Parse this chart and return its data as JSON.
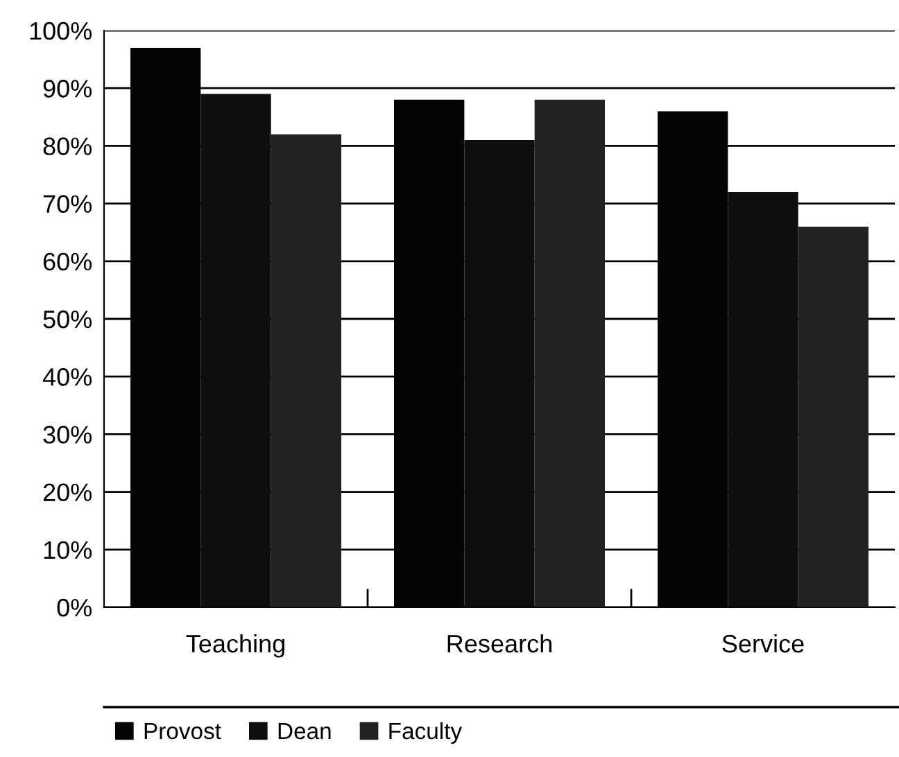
{
  "chart_data": {
    "type": "bar",
    "categories": [
      "Teaching",
      "Research",
      "Service"
    ],
    "series": [
      {
        "name": "Provost",
        "color": "#050505",
        "values": [
          97,
          88,
          86
        ]
      },
      {
        "name": "Dean",
        "color": "#0f0f0f",
        "values": [
          89,
          81,
          72
        ]
      },
      {
        "name": "Faculty",
        "color": "#222222",
        "values": [
          82,
          88,
          66
        ]
      }
    ],
    "ylim": [
      0,
      100
    ],
    "yticks": [
      {
        "value": 0,
        "label": "0%"
      },
      {
        "value": 10,
        "label": "10%"
      },
      {
        "value": 20,
        "label": "20%"
      },
      {
        "value": 30,
        "label": "30%"
      },
      {
        "value": 40,
        "label": "40%"
      },
      {
        "value": 50,
        "label": "50%"
      },
      {
        "value": 60,
        "label": "60%"
      },
      {
        "value": 70,
        "label": "70%"
      },
      {
        "value": 80,
        "label": "80%"
      },
      {
        "value": 90,
        "label": "90%"
      },
      {
        "value": 100,
        "label": "100%"
      }
    ],
    "grid": "y",
    "legend": "bottom"
  }
}
